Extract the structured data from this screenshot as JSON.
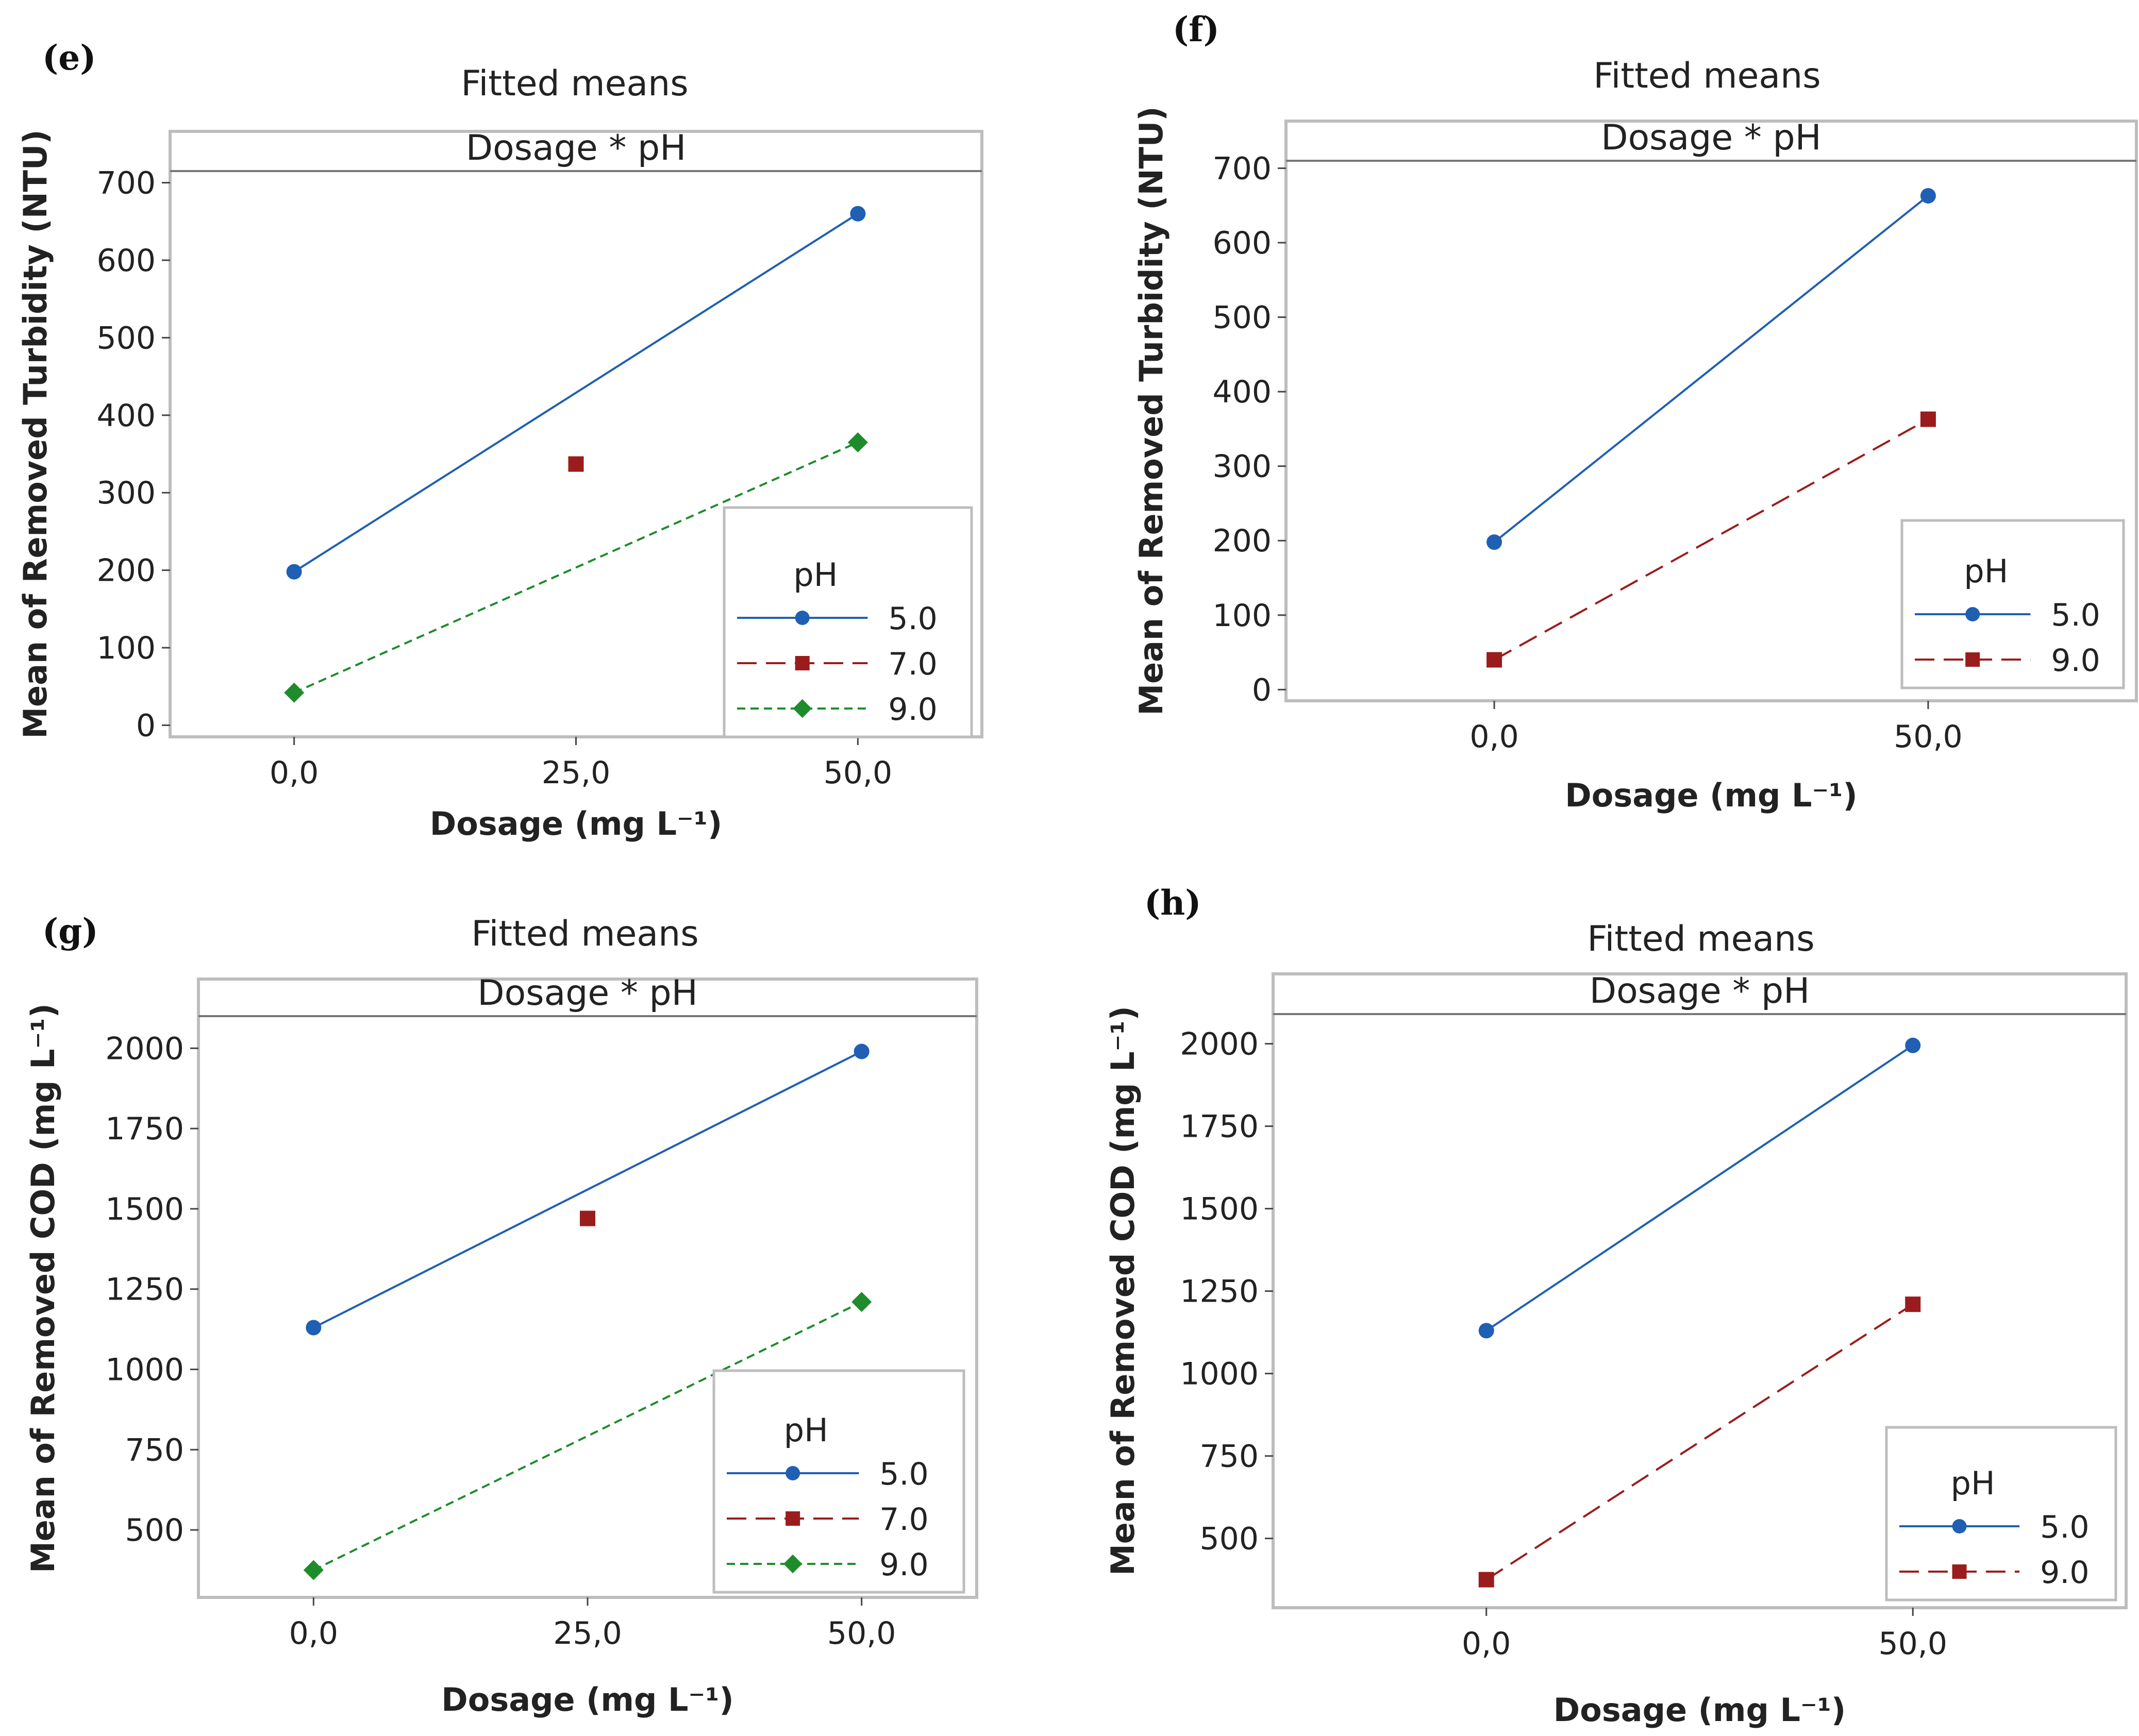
{
  "chart_data": [
    {
      "panel": "(e)",
      "type": "line",
      "title": "Fitted means",
      "strip": "Dosage * pH",
      "xlabel": "Dosage (mg L⁻¹)",
      "ylabel": "Mean of Removed Turbidity (NTU)",
      "x": [
        0,
        25,
        50
      ],
      "x_tick_labels": [
        "0,0",
        "25,0",
        "50,0"
      ],
      "xlim": [
        -11,
        61
      ],
      "y_ticks": [
        0,
        100,
        200,
        300,
        400,
        500,
        600,
        700
      ],
      "ylim": [
        -15,
        715
      ],
      "legend_title": "pH",
      "legend_position": "bottom-right",
      "series": [
        {
          "name": "5.0",
          "color": "#1f5fb4",
          "marker": "circle",
          "dash": "solid",
          "points": [
            [
              0,
              198
            ],
            [
              50,
              660
            ]
          ]
        },
        {
          "name": "7.0",
          "color": "#9b1c1c",
          "marker": "square",
          "dash": "dashed",
          "points": [
            [
              25,
              337
            ]
          ]
        },
        {
          "name": "9.0",
          "color": "#1e8c2a",
          "marker": "diamond",
          "dash": "dotted",
          "points": [
            [
              0,
              42
            ],
            [
              50,
              365
            ]
          ]
        }
      ]
    },
    {
      "panel": "(f)",
      "type": "line",
      "title": "Fitted means",
      "strip": "Dosage * pH",
      "xlabel": "Dosage (mg L⁻¹)",
      "ylabel": "Mean of Removed Turbidity (NTU)",
      "x": [
        0,
        50
      ],
      "x_tick_labels": [
        "0,0",
        "50,0"
      ],
      "xlim": [
        -24,
        74
      ],
      "y_ticks": [
        0,
        100,
        200,
        300,
        400,
        500,
        600,
        700
      ],
      "ylim": [
        -15,
        710
      ],
      "legend_title": "pH",
      "legend_position": "bottom-right",
      "series": [
        {
          "name": "5.0",
          "color": "#1f5fb4",
          "marker": "circle",
          "dash": "solid",
          "points": [
            [
              0,
              198
            ],
            [
              50,
              663
            ]
          ]
        },
        {
          "name": "9.0",
          "color": "#9b1c1c",
          "marker": "square",
          "dash": "dashed",
          "points": [
            [
              0,
              40
            ],
            [
              50,
              363
            ]
          ]
        }
      ]
    },
    {
      "panel": "(g)",
      "type": "line",
      "title": "Fitted means",
      "strip": "Dosage * pH",
      "xlabel": "Dosage (mg L⁻¹)",
      "ylabel": "Mean of Removed COD (mg L⁻¹)",
      "x": [
        0,
        25,
        50
      ],
      "x_tick_labels": [
        "0,0",
        "25,0",
        "50,0"
      ],
      "xlim": [
        -10.5,
        60.5
      ],
      "y_ticks": [
        500,
        750,
        1000,
        1250,
        1500,
        1750,
        2000
      ],
      "ylim": [
        290,
        2100
      ],
      "legend_title": "pH",
      "legend_position": "bottom-right",
      "series": [
        {
          "name": "5.0",
          "color": "#1f5fb4",
          "marker": "circle",
          "dash": "solid",
          "points": [
            [
              0,
              1130
            ],
            [
              50,
              1990
            ]
          ]
        },
        {
          "name": "7.0",
          "color": "#9b1c1c",
          "marker": "square",
          "dash": "dashed",
          "points": [
            [
              25,
              1470
            ]
          ]
        },
        {
          "name": "9.0",
          "color": "#1e8c2a",
          "marker": "diamond",
          "dash": "dotted",
          "points": [
            [
              0,
              375
            ],
            [
              50,
              1210
            ]
          ]
        }
      ]
    },
    {
      "panel": "(h)",
      "type": "line",
      "title": "Fitted means",
      "strip": "Dosage * pH",
      "xlabel": "Dosage (mg L⁻¹)",
      "ylabel": "Mean of Removed COD (mg L⁻¹)",
      "x": [
        0,
        50
      ],
      "x_tick_labels": [
        "0,0",
        "50,0"
      ],
      "xlim": [
        -25,
        75
      ],
      "y_ticks": [
        500,
        750,
        1000,
        1250,
        1500,
        1750,
        2000
      ],
      "ylim": [
        290,
        2090
      ],
      "legend_title": "pH",
      "legend_position": "bottom-right",
      "series": [
        {
          "name": "5.0",
          "color": "#1f5fb4",
          "marker": "circle",
          "dash": "solid",
          "points": [
            [
              0,
              1130
            ],
            [
              50,
              1995
            ]
          ]
        },
        {
          "name": "9.0",
          "color": "#9b1c1c",
          "marker": "square",
          "dash": "dashed",
          "points": [
            [
              0,
              375
            ],
            [
              50,
              1210
            ]
          ]
        }
      ]
    }
  ]
}
